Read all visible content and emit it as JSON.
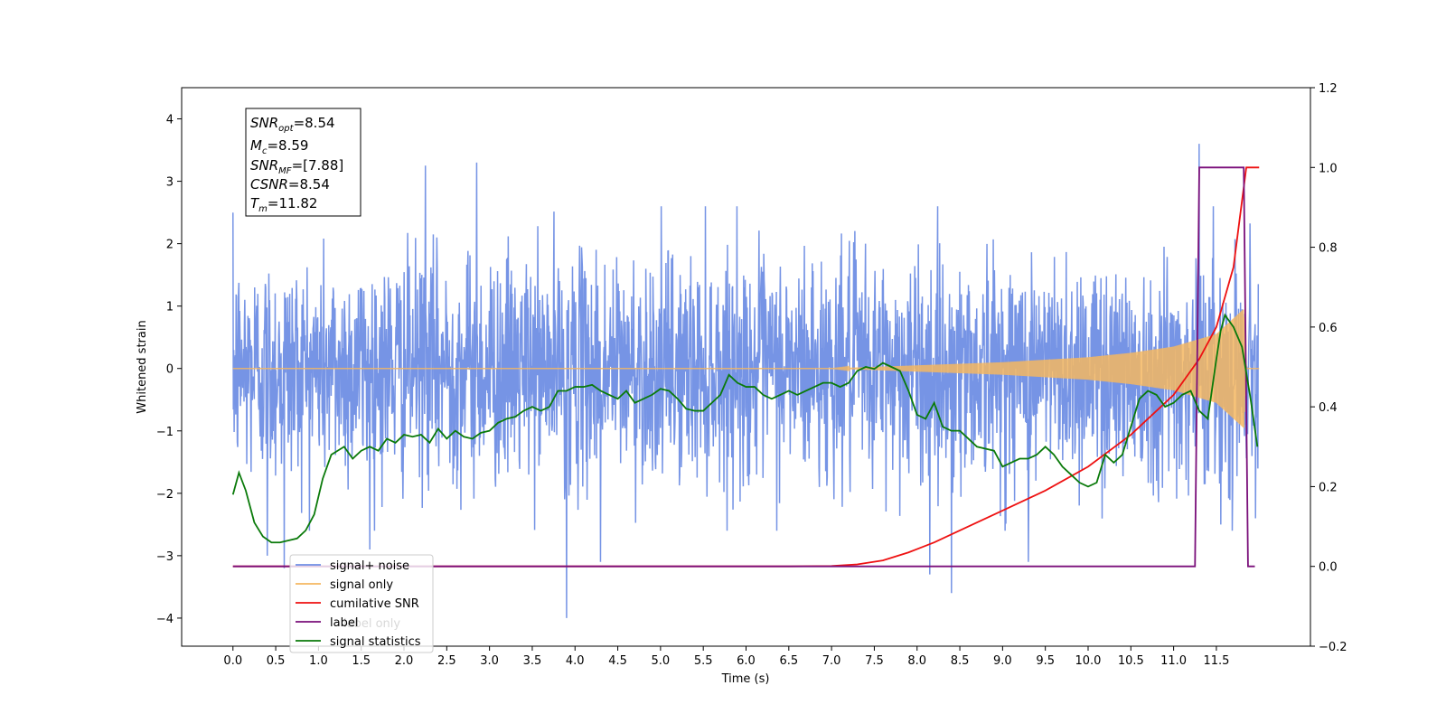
{
  "chart_data": {
    "type": "line",
    "xlabel": "Time (s)",
    "ylabel": "Whitened strain",
    "xlim": [
      -0.6,
      12.6
    ],
    "ylim": [
      -4.45,
      4.5
    ],
    "y2lim": [
      -0.2,
      1.2
    ],
    "x_ticks": [
      0.0,
      0.5,
      1.0,
      1.5,
      2.0,
      2.5,
      3.0,
      3.5,
      4.0,
      4.5,
      5.0,
      5.5,
      6.0,
      6.5,
      7.0,
      7.5,
      8.0,
      8.5,
      9.0,
      9.5,
      10.0,
      10.5,
      11.0,
      11.5
    ],
    "x_tick_labels": [
      "0.0",
      "0.5",
      "1.0",
      "1.5",
      "2.0",
      "2.5",
      "3.0",
      "3.5",
      "4.0",
      "4.5",
      "5.0",
      "5.5",
      "6.0",
      "6.5",
      "7.0",
      "7.5",
      "8.0",
      "8.5",
      "9.0",
      "9.5",
      "10.0",
      "10.5",
      "11.0",
      "11.5"
    ],
    "y_ticks": [
      -4,
      -3,
      -2,
      -1,
      0,
      1,
      2,
      3,
      4
    ],
    "y_tick_labels": [
      "−4",
      "−3",
      "−2",
      "−1",
      "0",
      "1",
      "2",
      "3",
      "4"
    ],
    "y2_ticks": [
      -0.2,
      0.0,
      0.2,
      0.4,
      0.6,
      0.8,
      1.0,
      1.2
    ],
    "y2_tick_labels": [
      "−0.2",
      "0.0",
      "0.2",
      "0.4",
      "0.6",
      "0.8",
      "1.0",
      "1.2"
    ],
    "grid": false,
    "legend_placement": "lower-left",
    "annotation": [
      {
        "sym": "SNR",
        "sub": "opt",
        "value": "=8.54"
      },
      {
        "sym": "M",
        "sub": "c",
        "value": "=8.59"
      },
      {
        "sym": "SNR",
        "sub": "MF",
        "value": "=[7.88]"
      },
      {
        "sym": "CSNR",
        "sub": "",
        "value": "=8.54"
      },
      {
        "sym": "T",
        "sub": "m",
        "value": "=11.82"
      }
    ],
    "series": [
      {
        "name": "signal+ noise",
        "axis": "left",
        "color": "#6f8ee4",
        "description_x_range": [
          0.0,
          11.99
        ],
        "envelope_typical": [
          -1.8,
          1.8
        ],
        "spikes": [
          [
            0.4,
            -3.0
          ],
          [
            0.6,
            -3.2
          ],
          [
            1.6,
            -2.9
          ],
          [
            3.9,
            -4.0
          ],
          [
            4.3,
            -3.1
          ],
          [
            2.25,
            3.25
          ],
          [
            2.85,
            3.3
          ],
          [
            8.15,
            -3.3
          ],
          [
            8.4,
            -3.6
          ],
          [
            9.3,
            -3.1
          ],
          [
            11.3,
            3.6
          ],
          [
            11.55,
            -2.5
          ]
        ]
      },
      {
        "name": "signal only",
        "axis": "left",
        "color": "#f5b761",
        "chirp_amplitude": [
          [
            0,
            0.0
          ],
          [
            7.0,
            0.0
          ],
          [
            8.0,
            0.05
          ],
          [
            9.0,
            0.1
          ],
          [
            10.0,
            0.18
          ],
          [
            10.5,
            0.25
          ],
          [
            11.0,
            0.35
          ],
          [
            11.5,
            0.55
          ],
          [
            11.82,
            0.95
          ],
          [
            11.85,
            0.0
          ],
          [
            12.0,
            0.0
          ]
        ]
      },
      {
        "name": "cumilative SNR",
        "axis": "right",
        "color": "#ee1111",
        "x": [
          0.0,
          6.5,
          7.0,
          7.3,
          7.6,
          7.9,
          8.2,
          8.5,
          9.0,
          9.5,
          10.0,
          10.5,
          11.0,
          11.3,
          11.5,
          11.7,
          11.82,
          11.85,
          11.95,
          12.0
        ],
        "y": [
          0.0,
          0.0,
          0.001,
          0.005,
          0.015,
          0.035,
          0.06,
          0.09,
          0.14,
          0.19,
          0.25,
          0.33,
          0.43,
          0.52,
          0.6,
          0.75,
          0.95,
          1.0,
          1.0,
          1.0
        ]
      },
      {
        "name": "label",
        "axis": "right",
        "color": "#7a0f7a",
        "x": [
          0.0,
          11.25,
          11.3,
          11.8,
          11.82,
          11.87,
          11.95
        ],
        "y": [
          0.0,
          0.0,
          1.0,
          1.0,
          1.0,
          0.0,
          0.0
        ]
      },
      {
        "name": "label only",
        "axis": "right",
        "color": "#d8d8d8",
        "x": [],
        "y": []
      },
      {
        "name": "signal statistics",
        "axis": "right",
        "color": "#0a7a0a",
        "x": [
          0.0,
          0.07,
          0.15,
          0.25,
          0.35,
          0.45,
          0.55,
          0.65,
          0.75,
          0.85,
          0.95,
          1.05,
          1.15,
          1.3,
          1.4,
          1.5,
          1.6,
          1.7,
          1.8,
          1.9,
          2.0,
          2.1,
          2.2,
          2.3,
          2.4,
          2.5,
          2.6,
          2.7,
          2.8,
          2.9,
          3.0,
          3.1,
          3.2,
          3.3,
          3.4,
          3.5,
          3.6,
          3.7,
          3.8,
          3.9,
          4.0,
          4.1,
          4.2,
          4.3,
          4.4,
          4.5,
          4.6,
          4.7,
          4.8,
          4.9,
          5.0,
          5.1,
          5.2,
          5.3,
          5.4,
          5.5,
          5.6,
          5.7,
          5.8,
          5.9,
          6.0,
          6.1,
          6.2,
          6.3,
          6.4,
          6.5,
          6.6,
          6.7,
          6.8,
          6.9,
          7.0,
          7.1,
          7.2,
          7.3,
          7.4,
          7.5,
          7.6,
          7.7,
          7.8,
          7.9,
          8.0,
          8.1,
          8.2,
          8.3,
          8.4,
          8.5,
          8.6,
          8.7,
          8.8,
          8.9,
          9.0,
          9.1,
          9.2,
          9.3,
          9.4,
          9.5,
          9.6,
          9.7,
          9.8,
          9.9,
          10.0,
          10.1,
          10.2,
          10.3,
          10.4,
          10.5,
          10.6,
          10.7,
          10.8,
          10.9,
          11.0,
          11.1,
          11.2,
          11.3,
          11.4,
          11.5,
          11.55,
          11.6,
          11.7,
          11.8,
          11.9,
          11.98
        ],
        "y": [
          0.18,
          0.235,
          0.19,
          0.11,
          0.075,
          0.06,
          0.06,
          0.065,
          0.07,
          0.09,
          0.13,
          0.22,
          0.28,
          0.3,
          0.27,
          0.29,
          0.3,
          0.29,
          0.32,
          0.31,
          0.33,
          0.325,
          0.33,
          0.31,
          0.345,
          0.32,
          0.34,
          0.325,
          0.32,
          0.335,
          0.34,
          0.36,
          0.37,
          0.375,
          0.39,
          0.4,
          0.39,
          0.4,
          0.44,
          0.44,
          0.45,
          0.45,
          0.455,
          0.44,
          0.43,
          0.42,
          0.44,
          0.41,
          0.42,
          0.43,
          0.445,
          0.44,
          0.42,
          0.395,
          0.39,
          0.39,
          0.41,
          0.43,
          0.48,
          0.46,
          0.45,
          0.45,
          0.43,
          0.42,
          0.43,
          0.44,
          0.43,
          0.44,
          0.45,
          0.46,
          0.46,
          0.45,
          0.46,
          0.49,
          0.5,
          0.495,
          0.51,
          0.5,
          0.49,
          0.44,
          0.38,
          0.37,
          0.41,
          0.35,
          0.34,
          0.34,
          0.32,
          0.3,
          0.295,
          0.29,
          0.25,
          0.26,
          0.27,
          0.27,
          0.28,
          0.3,
          0.28,
          0.25,
          0.23,
          0.21,
          0.2,
          0.21,
          0.28,
          0.26,
          0.28,
          0.35,
          0.42,
          0.44,
          0.43,
          0.4,
          0.41,
          0.43,
          0.44,
          0.39,
          0.37,
          0.52,
          0.59,
          0.63,
          0.6,
          0.55,
          0.42,
          0.3
        ]
      }
    ]
  }
}
